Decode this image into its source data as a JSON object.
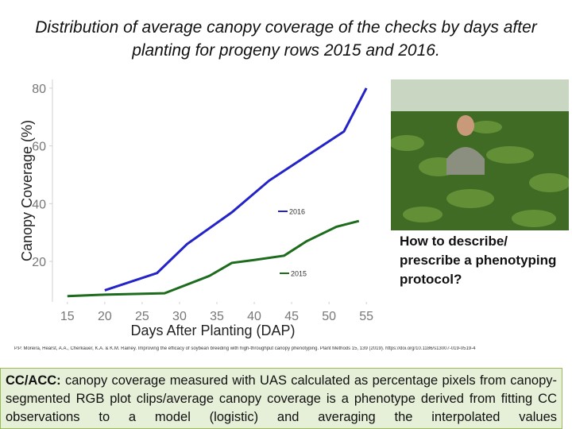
{
  "title": "Distribution of average canopy coverage of the checks by days after planting for progeny rows 2015 and 2016.",
  "chart_data": {
    "type": "line",
    "xlabel": "Days After Planting (DAP)",
    "ylabel": "Canopy Coverage (%)",
    "xlim": [
      13,
      57
    ],
    "ylim": [
      6,
      83
    ],
    "xticks": [
      15,
      20,
      25,
      30,
      35,
      40,
      45,
      50,
      55
    ],
    "yticks": [
      20,
      40,
      60,
      80
    ],
    "series": [
      {
        "name": "2016",
        "color": "#2323c8",
        "x": [
          20,
          27,
          31,
          37,
          42,
          52,
          55
        ],
        "values": [
          10,
          16,
          26,
          37,
          48,
          65,
          80
        ]
      },
      {
        "name": "2015",
        "color": "#1d6b1d",
        "x": [
          15,
          20,
          28,
          34,
          37,
          40,
          44,
          47,
          51,
          54
        ],
        "values": [
          8,
          8.5,
          9,
          15,
          19.5,
          20.5,
          22,
          27,
          32,
          34
        ]
      }
    ]
  },
  "question": "How to describe/ prescribe a phenotyping protocol?",
  "citation": "P.P. Moreira, Hearst, A.A., Cherkauer, K.A. & K.M. Rainey. Improving the efficacy of soybean breeding with high-throughput canopy phenotyping. Plant Methods 15, 139 (2019). https://doi.org/10.1186/s13007-019-0519-4",
  "note": {
    "label": "CC/ACC:",
    "text": "canopy coverage measured with UAS calculated as percentage pixels from canopy-segmented RGB plot clips/average canopy coverage is a phenotype derived from fitting CC observations to a model (logistic) and averaging the interpolated values"
  }
}
